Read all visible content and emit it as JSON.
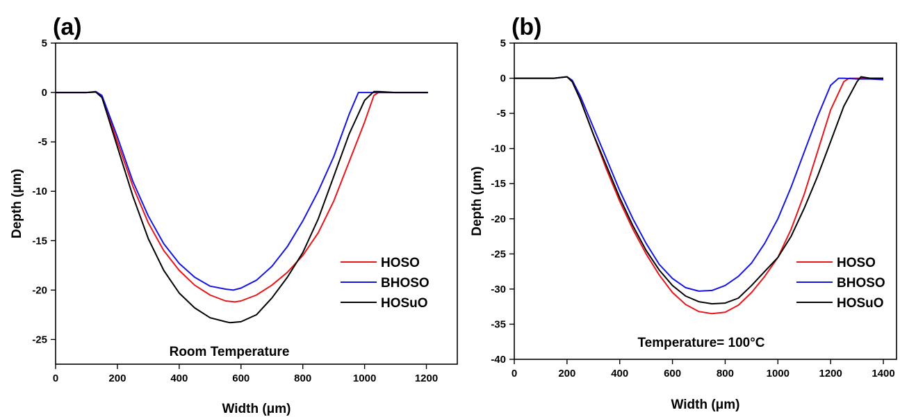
{
  "colors": {
    "HOSO": "#e8151b",
    "BHOSO": "#1414e6",
    "HOSuO": "#000000"
  },
  "chart_data": [
    {
      "type": "line",
      "panel_label": "(a)",
      "annotation": "Room Temperature",
      "xlabel": "Width (μm)",
      "ylabel": "Depth (μm)",
      "xlim": [
        0,
        1300
      ],
      "ylim": [
        -27.5,
        5
      ],
      "xticks": [
        0,
        200,
        400,
        600,
        800,
        1000,
        1200
      ],
      "yticks": [
        5,
        0,
        -5,
        -10,
        -15,
        -20,
        -25
      ],
      "legend_position": "lower-right",
      "grid": false,
      "series": [
        {
          "name": "HOSO",
          "x": [
            0,
            100,
            130,
            150,
            200,
            250,
            300,
            350,
            400,
            450,
            500,
            550,
            580,
            600,
            650,
            700,
            750,
            800,
            850,
            900,
            950,
            1000,
            1030,
            1045,
            1100,
            1150,
            1205
          ],
          "y": [
            0,
            0,
            0.05,
            -0.5,
            -5,
            -9.5,
            -13.2,
            -16.0,
            -18.0,
            -19.5,
            -20.5,
            -21.1,
            -21.2,
            -21.1,
            -20.5,
            -19.5,
            -18.2,
            -16.5,
            -14.2,
            -11.0,
            -7.0,
            -3.0,
            -0.3,
            0,
            0,
            0,
            0
          ]
        },
        {
          "name": "BHOSO",
          "x": [
            0,
            100,
            130,
            150,
            200,
            250,
            300,
            350,
            400,
            450,
            500,
            550,
            575,
            600,
            650,
            700,
            750,
            800,
            850,
            900,
            950,
            980,
            1000,
            1050,
            1100,
            1150,
            1205
          ],
          "y": [
            0,
            0,
            0.1,
            -0.3,
            -4.5,
            -9.0,
            -12.5,
            -15.3,
            -17.3,
            -18.7,
            -19.6,
            -19.9,
            -20.0,
            -19.8,
            -19.0,
            -17.6,
            -15.6,
            -13.0,
            -10.0,
            -6.5,
            -2.2,
            0,
            0,
            0,
            0,
            0,
            0
          ]
        },
        {
          "name": "HOSuO",
          "x": [
            0,
            100,
            130,
            150,
            200,
            250,
            300,
            350,
            400,
            450,
            500,
            550,
            565,
            600,
            650,
            700,
            750,
            800,
            850,
            900,
            950,
            1000,
            1030,
            1045,
            1100,
            1150,
            1205
          ],
          "y": [
            0,
            0,
            0.05,
            -0.5,
            -5.5,
            -10.5,
            -14.8,
            -18.0,
            -20.3,
            -21.8,
            -22.8,
            -23.2,
            -23.3,
            -23.2,
            -22.5,
            -20.8,
            -18.7,
            -16.2,
            -12.8,
            -8.5,
            -4.2,
            -0.8,
            0.1,
            0.1,
            0,
            0,
            0
          ]
        }
      ]
    },
    {
      "type": "line",
      "panel_label": "(b)",
      "annotation": "Temperature= 100°C",
      "xlabel": "Width (μm)",
      "ylabel": "Depth (μm)",
      "xlim": [
        0,
        1450
      ],
      "ylim": [
        -40,
        5
      ],
      "xticks": [
        0,
        200,
        400,
        600,
        800,
        1000,
        1200,
        1400
      ],
      "yticks": [
        5,
        0,
        -5,
        -10,
        -15,
        -20,
        -25,
        -30,
        -35,
        -40
      ],
      "legend_position": "lower-right",
      "grid": false,
      "series": [
        {
          "name": "HOSO",
          "x": [
            0,
            150,
            200,
            220,
            250,
            300,
            350,
            400,
            450,
            500,
            550,
            600,
            650,
            700,
            750,
            800,
            850,
            900,
            950,
            1000,
            1050,
            1100,
            1150,
            1200,
            1250,
            1270,
            1300,
            1350,
            1400
          ],
          "y": [
            0,
            0,
            0.2,
            -0.5,
            -3,
            -8,
            -13,
            -17.5,
            -21.5,
            -25.0,
            -28.0,
            -30.5,
            -32.2,
            -33.2,
            -33.5,
            -33.3,
            -32.3,
            -30.5,
            -28.2,
            -25.5,
            -21.5,
            -16.5,
            -10.5,
            -4.5,
            -0.5,
            0,
            0,
            0,
            0
          ]
        },
        {
          "name": "BHOSO",
          "x": [
            0,
            150,
            200,
            220,
            250,
            300,
            350,
            400,
            450,
            500,
            550,
            600,
            650,
            700,
            750,
            800,
            850,
            900,
            950,
            1000,
            1050,
            1100,
            1150,
            1200,
            1230,
            1250,
            1300,
            1350,
            1400
          ],
          "y": [
            0,
            0,
            0.2,
            -0.3,
            -2.5,
            -7,
            -11.5,
            -16.0,
            -20.0,
            -23.5,
            -26.5,
            -28.5,
            -29.8,
            -30.3,
            -30.2,
            -29.5,
            -28.2,
            -26.3,
            -23.5,
            -20.0,
            -15.5,
            -10.5,
            -5.5,
            -1.0,
            0,
            0,
            -0.1,
            -0.1,
            -0.2
          ]
        },
        {
          "name": "HOSuO",
          "x": [
            0,
            150,
            200,
            220,
            250,
            300,
            350,
            400,
            450,
            500,
            550,
            600,
            650,
            700,
            750,
            800,
            850,
            900,
            950,
            1000,
            1050,
            1100,
            1150,
            1200,
            1250,
            1300,
            1315,
            1350,
            1400
          ],
          "y": [
            0,
            0,
            0.2,
            -0.5,
            -3,
            -8,
            -12.5,
            -17,
            -21.0,
            -24.5,
            -27.3,
            -29.5,
            -31.0,
            -31.8,
            -32.1,
            -32.0,
            -31.3,
            -29.5,
            -27.5,
            -25.5,
            -22.5,
            -18.5,
            -14.0,
            -9.0,
            -4.0,
            -0.5,
            0.2,
            0,
            0
          ]
        }
      ]
    }
  ]
}
